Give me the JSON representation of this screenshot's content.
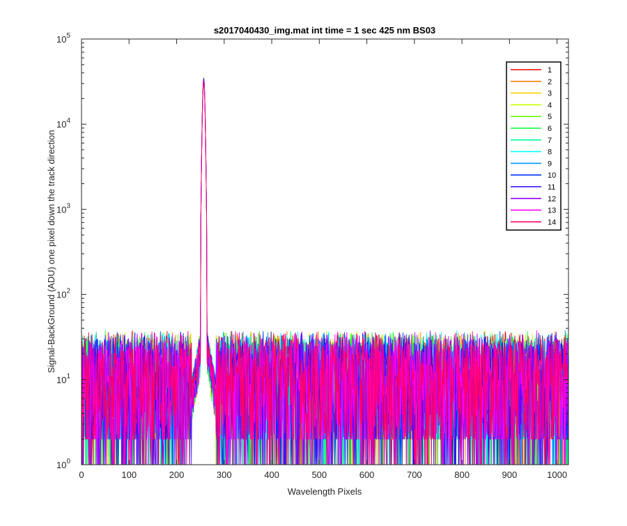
{
  "chart_data": {
    "type": "line",
    "title": "s2017040430_img.mat int time = 1 sec  425 nm BS03",
    "xlabel": "Wavelength Pixels",
    "ylabel": "Signal-BackGround (ADU) one pixel down the track direction",
    "xlim": [
      0,
      1024
    ],
    "ylim": [
      1,
      100000
    ],
    "yscale": "log",
    "xticks": [
      0,
      100,
      200,
      300,
      400,
      500,
      600,
      700,
      800,
      900,
      1000
    ],
    "yticks": [
      {
        "base": "10",
        "exp": "0",
        "value": 1
      },
      {
        "base": "10",
        "exp": "1",
        "value": 10
      },
      {
        "base": "10",
        "exp": "2",
        "value": 100
      },
      {
        "base": "10",
        "exp": "3",
        "value": 1000
      },
      {
        "base": "10",
        "exp": "4",
        "value": 10000
      },
      {
        "base": "10",
        "exp": "5",
        "value": 100000
      }
    ],
    "grid": false,
    "legend_position": "top-right",
    "peak": {
      "x": 257,
      "y": 35000
    },
    "noise_floor": {
      "typical_max": 30,
      "typical_min": 2
    },
    "series": [
      {
        "name": "1",
        "color": "#ff0000"
      },
      {
        "name": "2",
        "color": "#ff7f00"
      },
      {
        "name": "3",
        "color": "#ffcc00"
      },
      {
        "name": "4",
        "color": "#c8ff00"
      },
      {
        "name": "5",
        "color": "#66ff00"
      },
      {
        "name": "6",
        "color": "#00ff33"
      },
      {
        "name": "7",
        "color": "#00ff99"
      },
      {
        "name": "8",
        "color": "#00ffff"
      },
      {
        "name": "9",
        "color": "#0099ff"
      },
      {
        "name": "10",
        "color": "#0033ff"
      },
      {
        "name": "11",
        "color": "#3300ff"
      },
      {
        "name": "12",
        "color": "#9900ff"
      },
      {
        "name": "13",
        "color": "#ff00ff"
      },
      {
        "name": "14",
        "color": "#ff0066"
      }
    ]
  }
}
